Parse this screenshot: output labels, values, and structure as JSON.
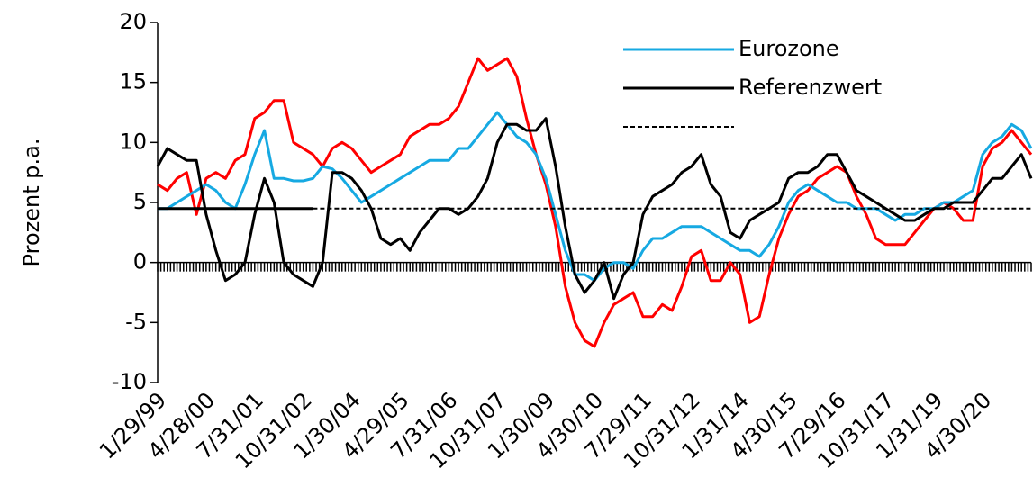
{
  "chart_data": {
    "type": "line",
    "y_label": "Prozent p.a.",
    "x": [
      "1/29/99",
      null,
      null,
      null,
      null,
      "4/28/00",
      null,
      null,
      null,
      null,
      "7/31/01",
      null,
      null,
      null,
      null,
      "10/31/02",
      null,
      null,
      null,
      null,
      "1/30/04",
      null,
      null,
      null,
      null,
      "4/29/05",
      null,
      null,
      null,
      null,
      "7/31/06",
      null,
      null,
      null,
      null,
      "10/31/07",
      null,
      null,
      null,
      null,
      "1/30/09",
      null,
      null,
      null,
      null,
      "4/30/10",
      null,
      null,
      null,
      null,
      "7/29/11",
      null,
      null,
      null,
      null,
      "10/31/12",
      null,
      null,
      null,
      null,
      "1/31/14",
      null,
      null,
      null,
      null,
      "4/30/15",
      null,
      null,
      null,
      null,
      "7/29/16",
      null,
      null,
      null,
      null,
      "10/31/17",
      null,
      null,
      null,
      null,
      "1/31/19",
      null,
      null,
      null,
      null,
      "4/30/20",
      null,
      null,
      null,
      null,
      null
    ],
    "series": [
      {
        "color": "#ff0000",
        "width": 3,
        "values": [
          6.5,
          6,
          7,
          7.5,
          4,
          7,
          7.5,
          7,
          8.5,
          9,
          12,
          12.5,
          13.5,
          13.5,
          10,
          9.5,
          9,
          8,
          9.5,
          10,
          9.5,
          8.5,
          7.5,
          8,
          8.5,
          9,
          10.5,
          11,
          11.5,
          11.5,
          12,
          13,
          15,
          17,
          16,
          16.5,
          17,
          15.5,
          12,
          9,
          6.5,
          3,
          -2,
          -5,
          -6.5,
          -7,
          -5,
          -3.5,
          -3,
          -2.5,
          -4.5,
          -4.5,
          -3.5,
          -4,
          -2,
          0.5,
          1,
          -1.5,
          -1.5,
          0,
          -1,
          -5,
          -4.5,
          -1,
          2,
          4,
          5.5,
          6,
          7,
          7.5,
          8,
          7.5,
          5.5,
          4,
          2,
          1.5,
          1.5,
          1.5,
          2.5,
          3.5,
          4.5,
          5,
          4.5,
          3.5,
          3.5,
          8,
          9.5,
          10,
          11,
          10,
          9
        ]
      },
      {
        "name": "Eurozone",
        "color": "#16a9e2",
        "width": 3,
        "legend": true,
        "values": [
          4.5,
          4.5,
          5,
          5.5,
          6,
          6.5,
          6,
          5,
          4.5,
          6.5,
          9,
          11,
          7,
          7,
          6.8,
          6.8,
          7,
          8,
          7.8,
          7,
          6,
          5,
          5.5,
          6,
          6.5,
          7,
          7.5,
          8,
          8.5,
          8.5,
          8.5,
          9.5,
          9.5,
          10.5,
          11.5,
          12.5,
          11.5,
          10.5,
          10,
          9,
          7,
          4,
          1,
          -1,
          -1,
          -1.5,
          -0.5,
          0,
          0,
          -0.5,
          1,
          2,
          2,
          2.5,
          3,
          3,
          3,
          2.5,
          2,
          1.5,
          1,
          1,
          0.5,
          1.5,
          3,
          5,
          6,
          6.5,
          6,
          5.5,
          5,
          5,
          4.5,
          4.5,
          4.5,
          4,
          3.5,
          4,
          4,
          4.5,
          4.5,
          5,
          5,
          5.5,
          6,
          9,
          10,
          10.5,
          11.5,
          11,
          9.5
        ]
      },
      {
        "name": "Referenzwert",
        "color": "#000000",
        "width": 3,
        "legend": true,
        "values": [
          8,
          9.5,
          9,
          8.5,
          8.5,
          4,
          1,
          -1.5,
          -1,
          0,
          4,
          7,
          5,
          0,
          -1,
          -1.5,
          -2,
          0,
          7.5,
          7.5,
          7,
          6,
          4.5,
          2,
          1.5,
          2,
          1,
          2.5,
          3.5,
          4.5,
          4.5,
          4,
          4.5,
          5.5,
          7,
          10,
          11.5,
          11.5,
          11,
          11,
          12,
          8,
          3,
          -1,
          -2.5,
          -1.5,
          0,
          -3,
          -1,
          0,
          4,
          5.5,
          6,
          6.5,
          7.5,
          8,
          9,
          6.5,
          5.5,
          2.5,
          2,
          3.5,
          4,
          4.5,
          5,
          7,
          7.5,
          7.5,
          8,
          9,
          9,
          7.5,
          6,
          5.5,
          5,
          4.5,
          4,
          3.5,
          3.5,
          4,
          4.5,
          4.5,
          5,
          5,
          5,
          6,
          7,
          7,
          8,
          9,
          7
        ]
      },
      {
        "color": "#000000",
        "width": 3,
        "values": [
          4.5,
          4.5,
          4.5,
          4.5,
          4.5,
          4.5,
          4.5,
          4.5,
          4.5,
          4.5,
          4.5,
          4.5,
          4.5,
          4.5,
          4.5,
          4.5,
          4.5,
          null,
          null,
          null,
          null,
          null,
          null,
          null,
          null,
          null,
          null,
          null,
          null,
          null,
          null,
          null,
          null,
          null,
          null,
          null,
          null,
          null,
          null,
          null,
          null,
          null,
          null,
          null,
          null,
          null,
          null,
          null,
          null,
          null,
          null,
          null,
          null,
          null,
          null,
          null,
          null,
          null,
          null,
          null,
          null,
          null,
          null,
          null,
          null,
          null,
          null,
          null,
          null,
          null,
          null,
          null,
          null,
          null,
          null,
          null,
          null,
          null,
          null,
          null,
          null,
          null,
          null,
          null,
          null,
          null,
          null,
          null,
          null,
          null,
          null
        ]
      },
      {
        "color": "#000000",
        "width": 2,
        "dash": true,
        "legend": true,
        "values": [
          null,
          null,
          null,
          null,
          null,
          null,
          null,
          null,
          null,
          null,
          null,
          null,
          null,
          null,
          null,
          null,
          4.5,
          4.5,
          4.5,
          4.5,
          4.5,
          4.5,
          4.5,
          4.5,
          4.5,
          4.5,
          4.5,
          4.5,
          4.5,
          4.5,
          4.5,
          4.5,
          4.5,
          4.5,
          4.5,
          4.5,
          4.5,
          4.5,
          4.5,
          4.5,
          4.5,
          4.5,
          4.5,
          4.5,
          4.5,
          4.5,
          4.5,
          4.5,
          4.5,
          4.5,
          4.5,
          4.5,
          4.5,
          4.5,
          4.5,
          4.5,
          4.5,
          4.5,
          4.5,
          4.5,
          4.5,
          4.5,
          4.5,
          4.5,
          4.5,
          4.5,
          4.5,
          4.5,
          4.5,
          4.5,
          4.5,
          4.5,
          4.5,
          4.5,
          4.5,
          4.5,
          4.5,
          4.5,
          4.5,
          4.5,
          4.5,
          4.5,
          4.5,
          4.5,
          4.5,
          4.5,
          4.5,
          4.5,
          4.5,
          4.5,
          4.5
        ]
      }
    ],
    "ylim": [
      -10,
      20
    ],
    "yticks": [
      -10,
      -5,
      0,
      5,
      10,
      15,
      20
    ]
  }
}
